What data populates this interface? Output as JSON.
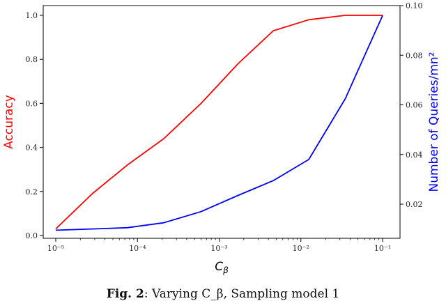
{
  "chart_data": {
    "type": "line",
    "x_scale": "log",
    "x": [
      1e-05,
      2.8e-05,
      7.5e-05,
      0.00021,
      0.0006,
      0.0017,
      0.0046,
      0.0125,
      0.035,
      0.1
    ],
    "xlim": [
      1e-05,
      0.1
    ],
    "x_ticks": [
      1e-05,
      0.0001,
      0.001,
      0.01,
      0.1
    ],
    "x_tick_labels": [
      "10⁻⁵",
      "10⁻⁴",
      "10⁻³",
      "10⁻²",
      "10⁻¹"
    ],
    "xlabel": "C_β",
    "ylim_left": [
      0,
      1.05
    ],
    "ylim_right": [
      0.006,
      0.1
    ],
    "y_ticks_left": [
      "0.0",
      "0.2",
      "0.4",
      "0.6",
      "0.8",
      "1.0"
    ],
    "y_ticks_right": [
      "0.02",
      "0.04",
      "0.06",
      "0.08",
      "0.10"
    ],
    "ylabel_left": "Accuracy",
    "ylabel_right": "Number of Queries/mn²",
    "grid": false,
    "series": [
      {
        "axis": "left",
        "color": "#ff0000",
        "values": [
          0.03,
          0.19,
          0.32,
          0.44,
          0.6,
          0.78,
          0.93,
          0.98,
          1.0,
          1.0
        ]
      },
      {
        "axis": "right",
        "color": "#0000ff",
        "values": [
          0.0095,
          0.01,
          0.0105,
          0.0125,
          0.017,
          0.0235,
          0.0295,
          0.038,
          0.0625,
          0.096
        ]
      }
    ]
  },
  "caption": {
    "label": "Fig. 2",
    "text": ": Varying C_β, Sampling model 1"
  }
}
